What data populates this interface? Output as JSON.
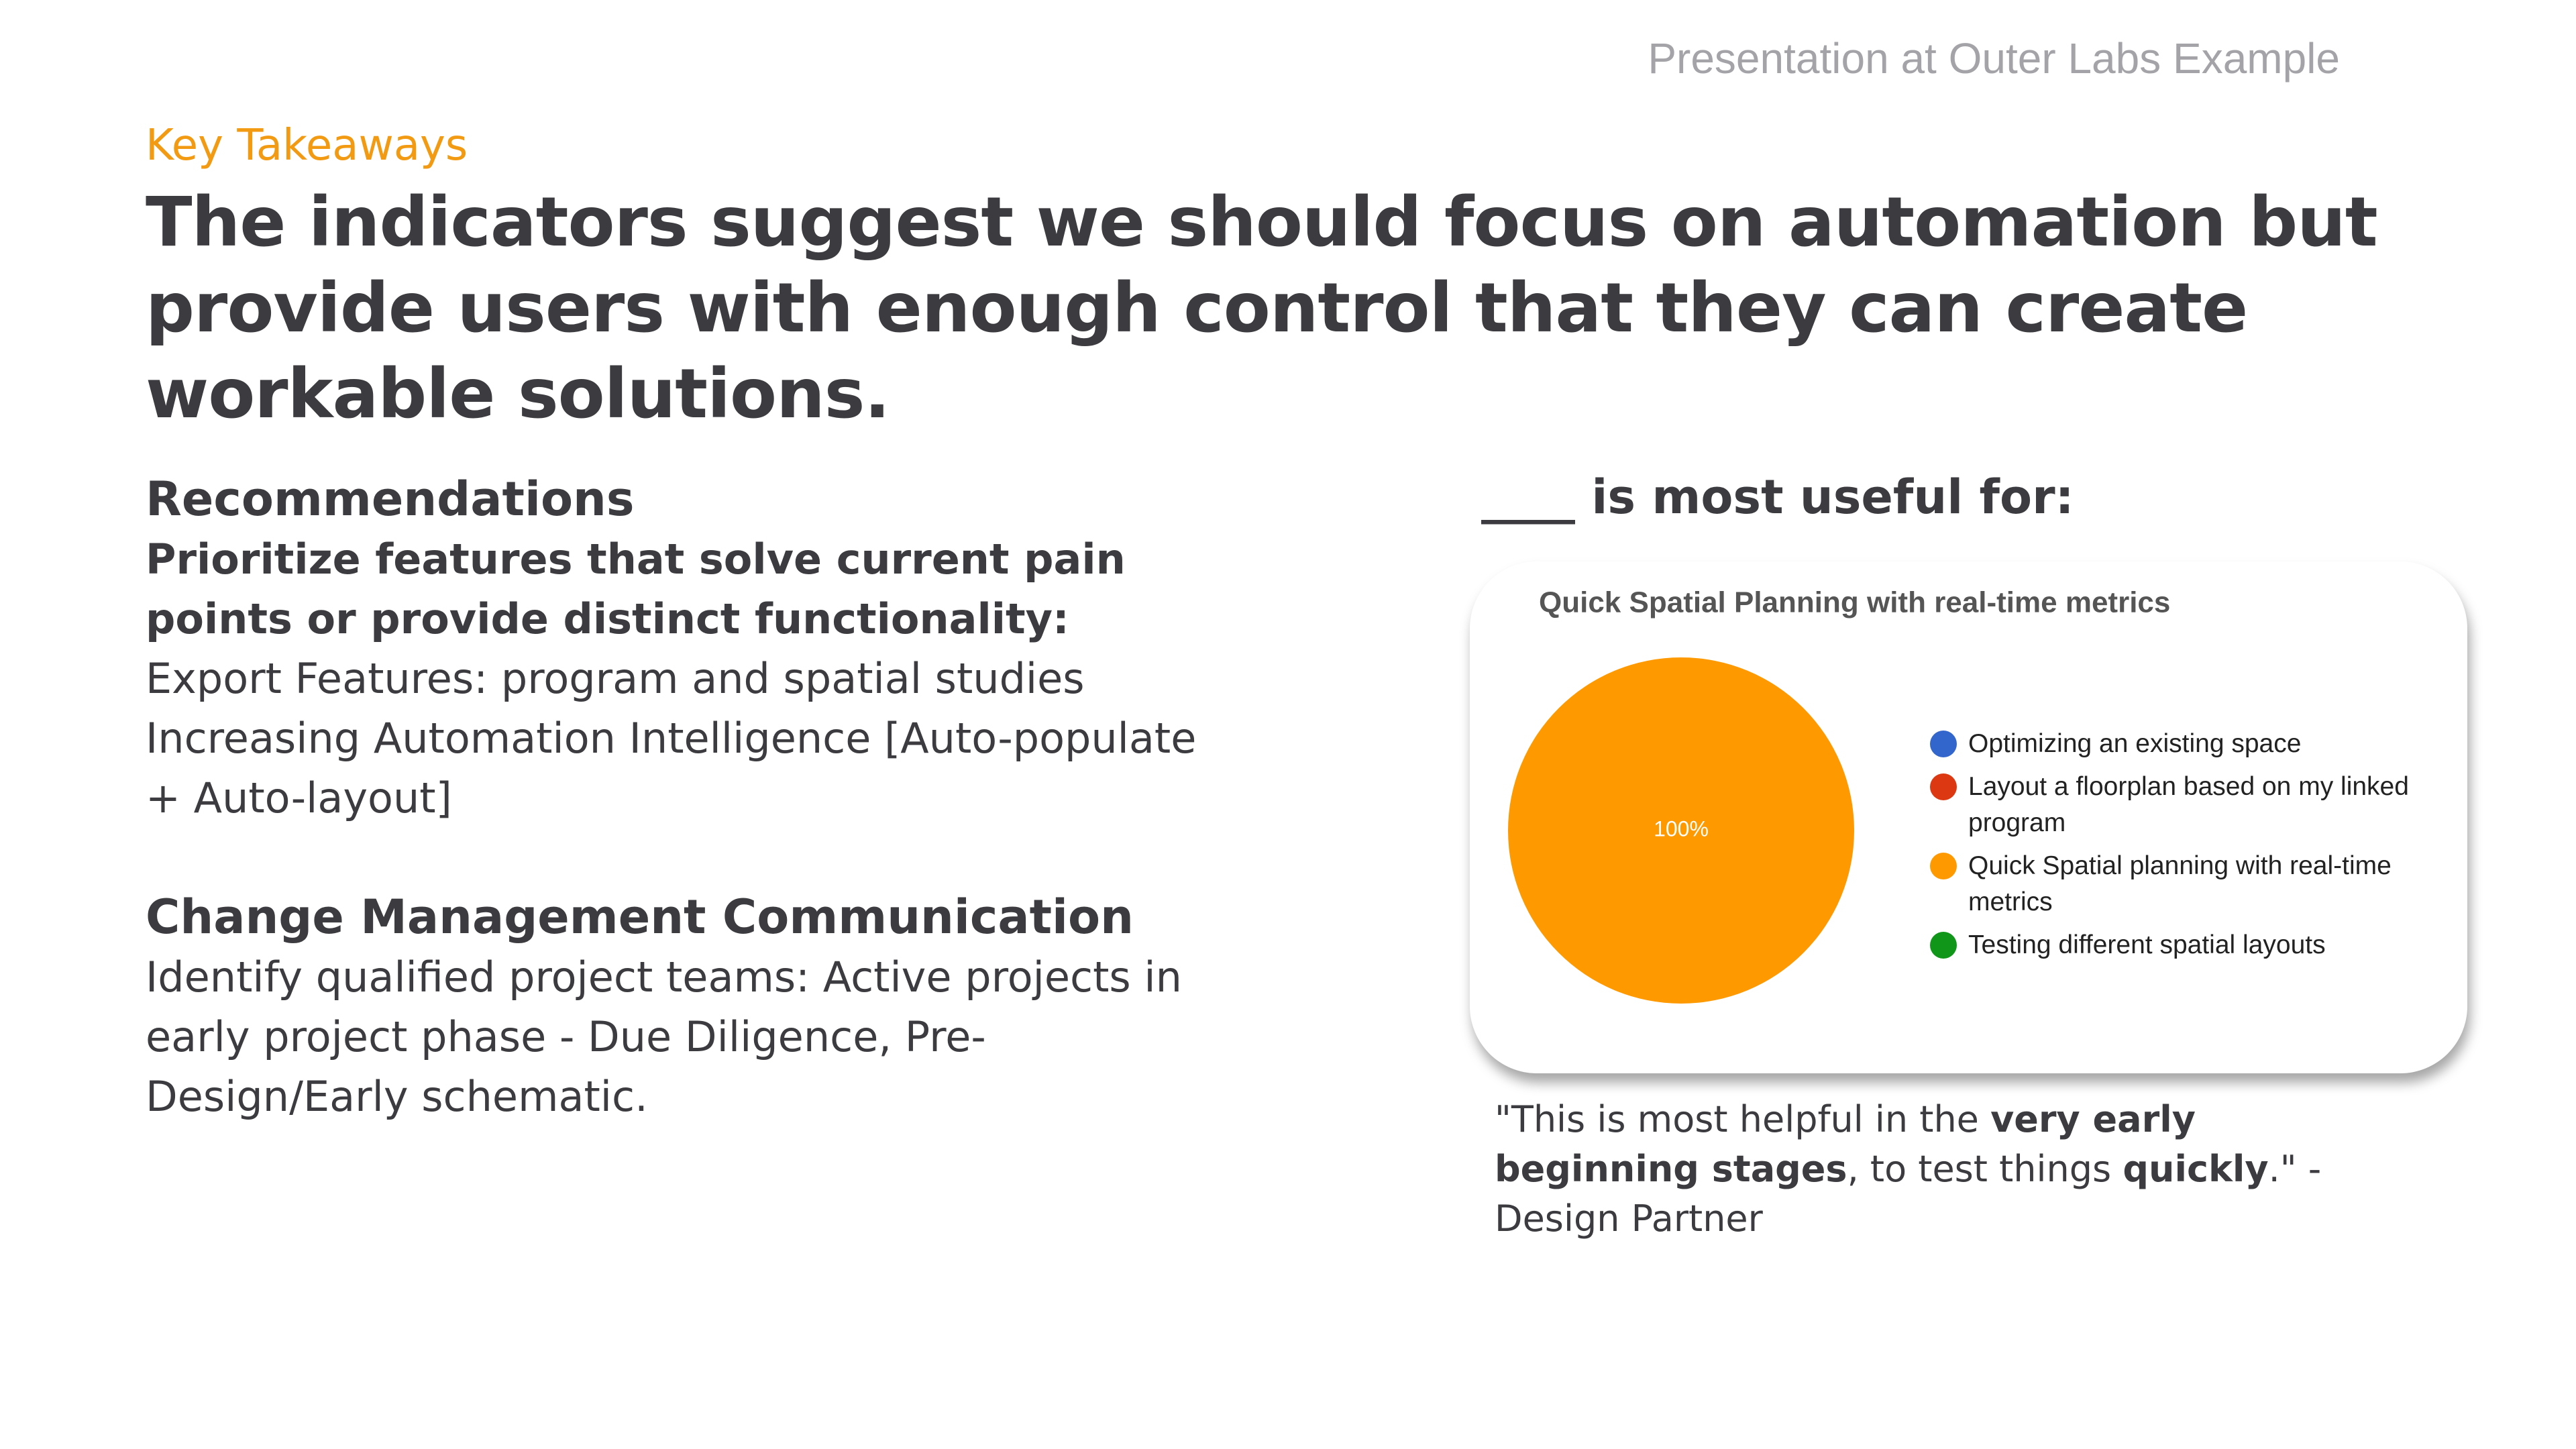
{
  "header_label": "Presentation at Outer Labs Example",
  "eyebrow": "Key Takeaways",
  "title": "The indicators suggest we should focus on automation but provide users with enough control that they can create workable solutions.",
  "left": {
    "heading": "Recommendations",
    "subheading": "Prioritize features that solve current pain points or provide distinct functionality:",
    "items": [
      "Export Features: program and spatial studies",
      "Increasing Automation Intelligence [Auto-populate + Auto-layout]"
    ],
    "heading2": "Change Management Communication",
    "body": "Identify qualified project teams: Active projects in early project phase - Due Diligence, Pre-Design/Early schematic."
  },
  "right": {
    "heading": "____ is most useful for:",
    "quote": {
      "parts": [
        {
          "text": "\"This is most helpful in the ",
          "bold": false
        },
        {
          "text": "very early beginning stages",
          "bold": true
        },
        {
          "text": ", to test things ",
          "bold": false
        },
        {
          "text": "quickly",
          "bold": true
        },
        {
          "text": ".\" - Design Partner",
          "bold": false
        }
      ]
    }
  },
  "chart_data": {
    "type": "pie",
    "title": "Quick Spatial Planning with real-time metrics",
    "categories": [
      "Optimizing an existing space",
      "Layout a floorplan based on my linked program",
      "Quick Spatial planning with real-time metrics",
      "Testing different spatial layouts"
    ],
    "values": [
      0,
      0,
      100,
      0
    ],
    "value_labels": [
      null,
      null,
      "100%",
      null
    ],
    "colors": [
      "#3366cc",
      "#dc3912",
      "#ff9900",
      "#109618"
    ],
    "legend": "right"
  }
}
